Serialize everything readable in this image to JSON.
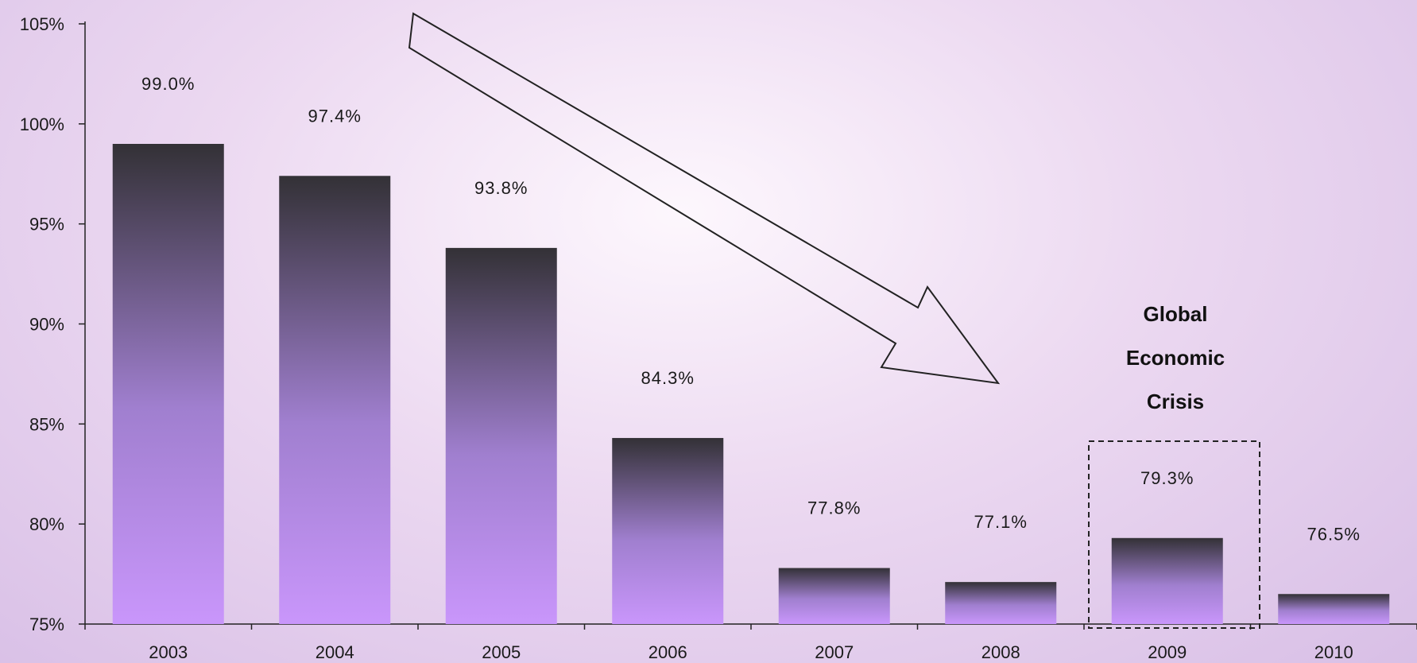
{
  "chart_data": {
    "type": "bar",
    "categories": [
      "2003",
      "2004",
      "2005",
      "2006",
      "2007",
      "2008",
      "2009",
      "2010"
    ],
    "values": [
      99.0,
      97.4,
      93.8,
      84.3,
      77.8,
      77.1,
      79.3,
      76.5
    ],
    "value_labels": [
      "99.0%",
      "97.4%",
      "93.8%",
      "84.3%",
      "77.8%",
      "77.1%",
      "79.3%",
      "76.5%"
    ],
    "ylim": [
      75,
      105
    ],
    "yticks": [
      75,
      80,
      85,
      90,
      95,
      100,
      105
    ],
    "ytick_labels": [
      "75%",
      "80%",
      "85%",
      "90%",
      "95%",
      "100%",
      "105%"
    ],
    "title": "",
    "xlabel": "",
    "ylabel": "",
    "grid": false,
    "bar_gradient": {
      "top": "#333136",
      "bottom": "#c996fb"
    },
    "annotations": [
      {
        "type": "arrow",
        "direction": "down-right"
      },
      {
        "type": "box",
        "category": "2009",
        "lines": [
          "Global",
          "Economic",
          "Crisis"
        ]
      }
    ]
  }
}
